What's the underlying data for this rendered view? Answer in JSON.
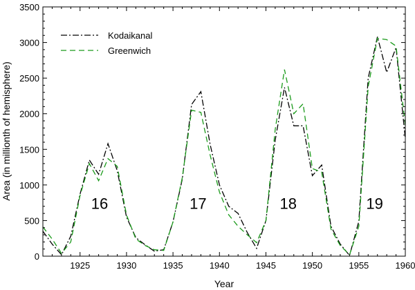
{
  "chart_data": {
    "type": "line",
    "title": "",
    "xlabel": "Year",
    "ylabel": "Area (in millionth of hemisphere)",
    "xlim": [
      1921,
      1960
    ],
    "ylim": [
      0,
      3500
    ],
    "x_ticks": [
      1925,
      1930,
      1935,
      1940,
      1945,
      1950,
      1955,
      1960
    ],
    "x_tick_labels": [
      "1925",
      "1930",
      "1935",
      "1940",
      "1945",
      "1950",
      "1955",
      "1960"
    ],
    "y_ticks": [
      0,
      500,
      1000,
      1500,
      2000,
      2500,
      3000,
      3500
    ],
    "y_tick_labels": [
      "0",
      "500",
      "1000",
      "1500",
      "2000",
      "2500",
      "3000",
      "3500"
    ],
    "grid": false,
    "legend_position": "top-left",
    "x": [
      1921,
      1922,
      1923,
      1924,
      1925,
      1926,
      1927,
      1928,
      1929,
      1930,
      1931,
      1932,
      1933,
      1934,
      1935,
      1936,
      1937,
      1938,
      1939,
      1940,
      1941,
      1942,
      1943,
      1944,
      1945,
      1946,
      1947,
      1948,
      1949,
      1950,
      1951,
      1952,
      1953,
      1954,
      1955,
      1956,
      1957,
      1958,
      1959,
      1960
    ],
    "series": [
      {
        "name": "Kodaikanal",
        "color": "#000000",
        "dash": "dashdot",
        "values": [
          350,
          170,
          20,
          280,
          870,
          1350,
          1150,
          1580,
          1200,
          550,
          260,
          160,
          70,
          90,
          480,
          1080,
          2130,
          2310,
          1570,
          1000,
          700,
          600,
          330,
          110,
          500,
          1630,
          2370,
          1830,
          1830,
          1130,
          1280,
          420,
          170,
          10,
          490,
          2500,
          3080,
          2580,
          2930,
          1650
        ]
      },
      {
        "name": "Greenwich",
        "color": "#1a9a1a",
        "dash": "dashed",
        "values": [
          410,
          240,
          40,
          200,
          850,
          1300,
          1060,
          1370,
          1260,
          580,
          240,
          150,
          90,
          80,
          480,
          1100,
          2050,
          2020,
          1420,
          900,
          580,
          420,
          300,
          190,
          500,
          1780,
          2620,
          2000,
          2140,
          1230,
          1180,
          380,
          150,
          20,
          420,
          2380,
          3060,
          3040,
          2950,
          1840
        ]
      }
    ],
    "annotations": [
      {
        "text": "16",
        "x": 1927.1,
        "y": 550
      },
      {
        "text": "17",
        "x": 1937.7,
        "y": 550
      },
      {
        "text": "18",
        "x": 1947.4,
        "y": 550
      },
      {
        "text": "19",
        "x": 1956.7,
        "y": 550
      }
    ]
  }
}
